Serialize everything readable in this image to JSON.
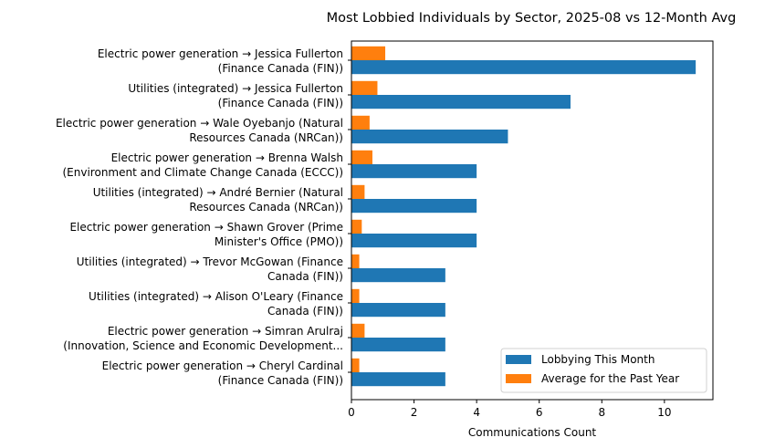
{
  "chart_data": {
    "type": "bar",
    "orientation": "horizontal",
    "title": "Most Lobbied Individuals by Sector, 2025-08 vs 12-Month Avg",
    "xlabel": "Communications Count",
    "ylabel": "",
    "xlim": [
      0,
      11.55
    ],
    "xticks": [
      0,
      2,
      4,
      6,
      8,
      10
    ],
    "xtick_labels": [
      "0",
      "2",
      "4",
      "6",
      "8",
      "10"
    ],
    "grid": false,
    "legend_position": "lower right",
    "categories": [
      [
        "Electric power generation → Jessica Fullerton",
        "(Finance Canada (FIN))"
      ],
      [
        "Utilities (integrated) → Jessica Fullerton",
        "(Finance Canada (FIN))"
      ],
      [
        "Electric power generation → Wale Oyebanjo (Natural",
        "Resources Canada (NRCan))"
      ],
      [
        "Electric power generation → Brenna Walsh",
        "(Environment and Climate Change Canada (ECCC))"
      ],
      [
        "Utilities (integrated) → André Bernier (Natural",
        "Resources Canada (NRCan))"
      ],
      [
        "Electric power generation → Shawn Grover (Prime",
        "Minister's Office (PMO))"
      ],
      [
        "Utilities (integrated) → Trevor McGowan (Finance",
        "Canada (FIN))"
      ],
      [
        "Utilities (integrated) → Alison O'Leary (Finance",
        "Canada (FIN))"
      ],
      [
        "Electric power generation → Simran Arulraj",
        "(Innovation, Science and Economic Development..."
      ],
      [
        "Electric power generation → Cheryl Cardinal",
        "(Finance Canada (FIN))"
      ]
    ],
    "series": [
      {
        "name": "Lobbying This Month",
        "color": "#1f77b4",
        "values": [
          11,
          7,
          5,
          4,
          4,
          4,
          3,
          3,
          3,
          3
        ]
      },
      {
        "name": "Average for the Past Year",
        "color": "#ff7f0e",
        "values": [
          1.08,
          0.83,
          0.58,
          0.67,
          0.42,
          0.33,
          0.25,
          0.25,
          0.42,
          0.25
        ]
      }
    ]
  }
}
